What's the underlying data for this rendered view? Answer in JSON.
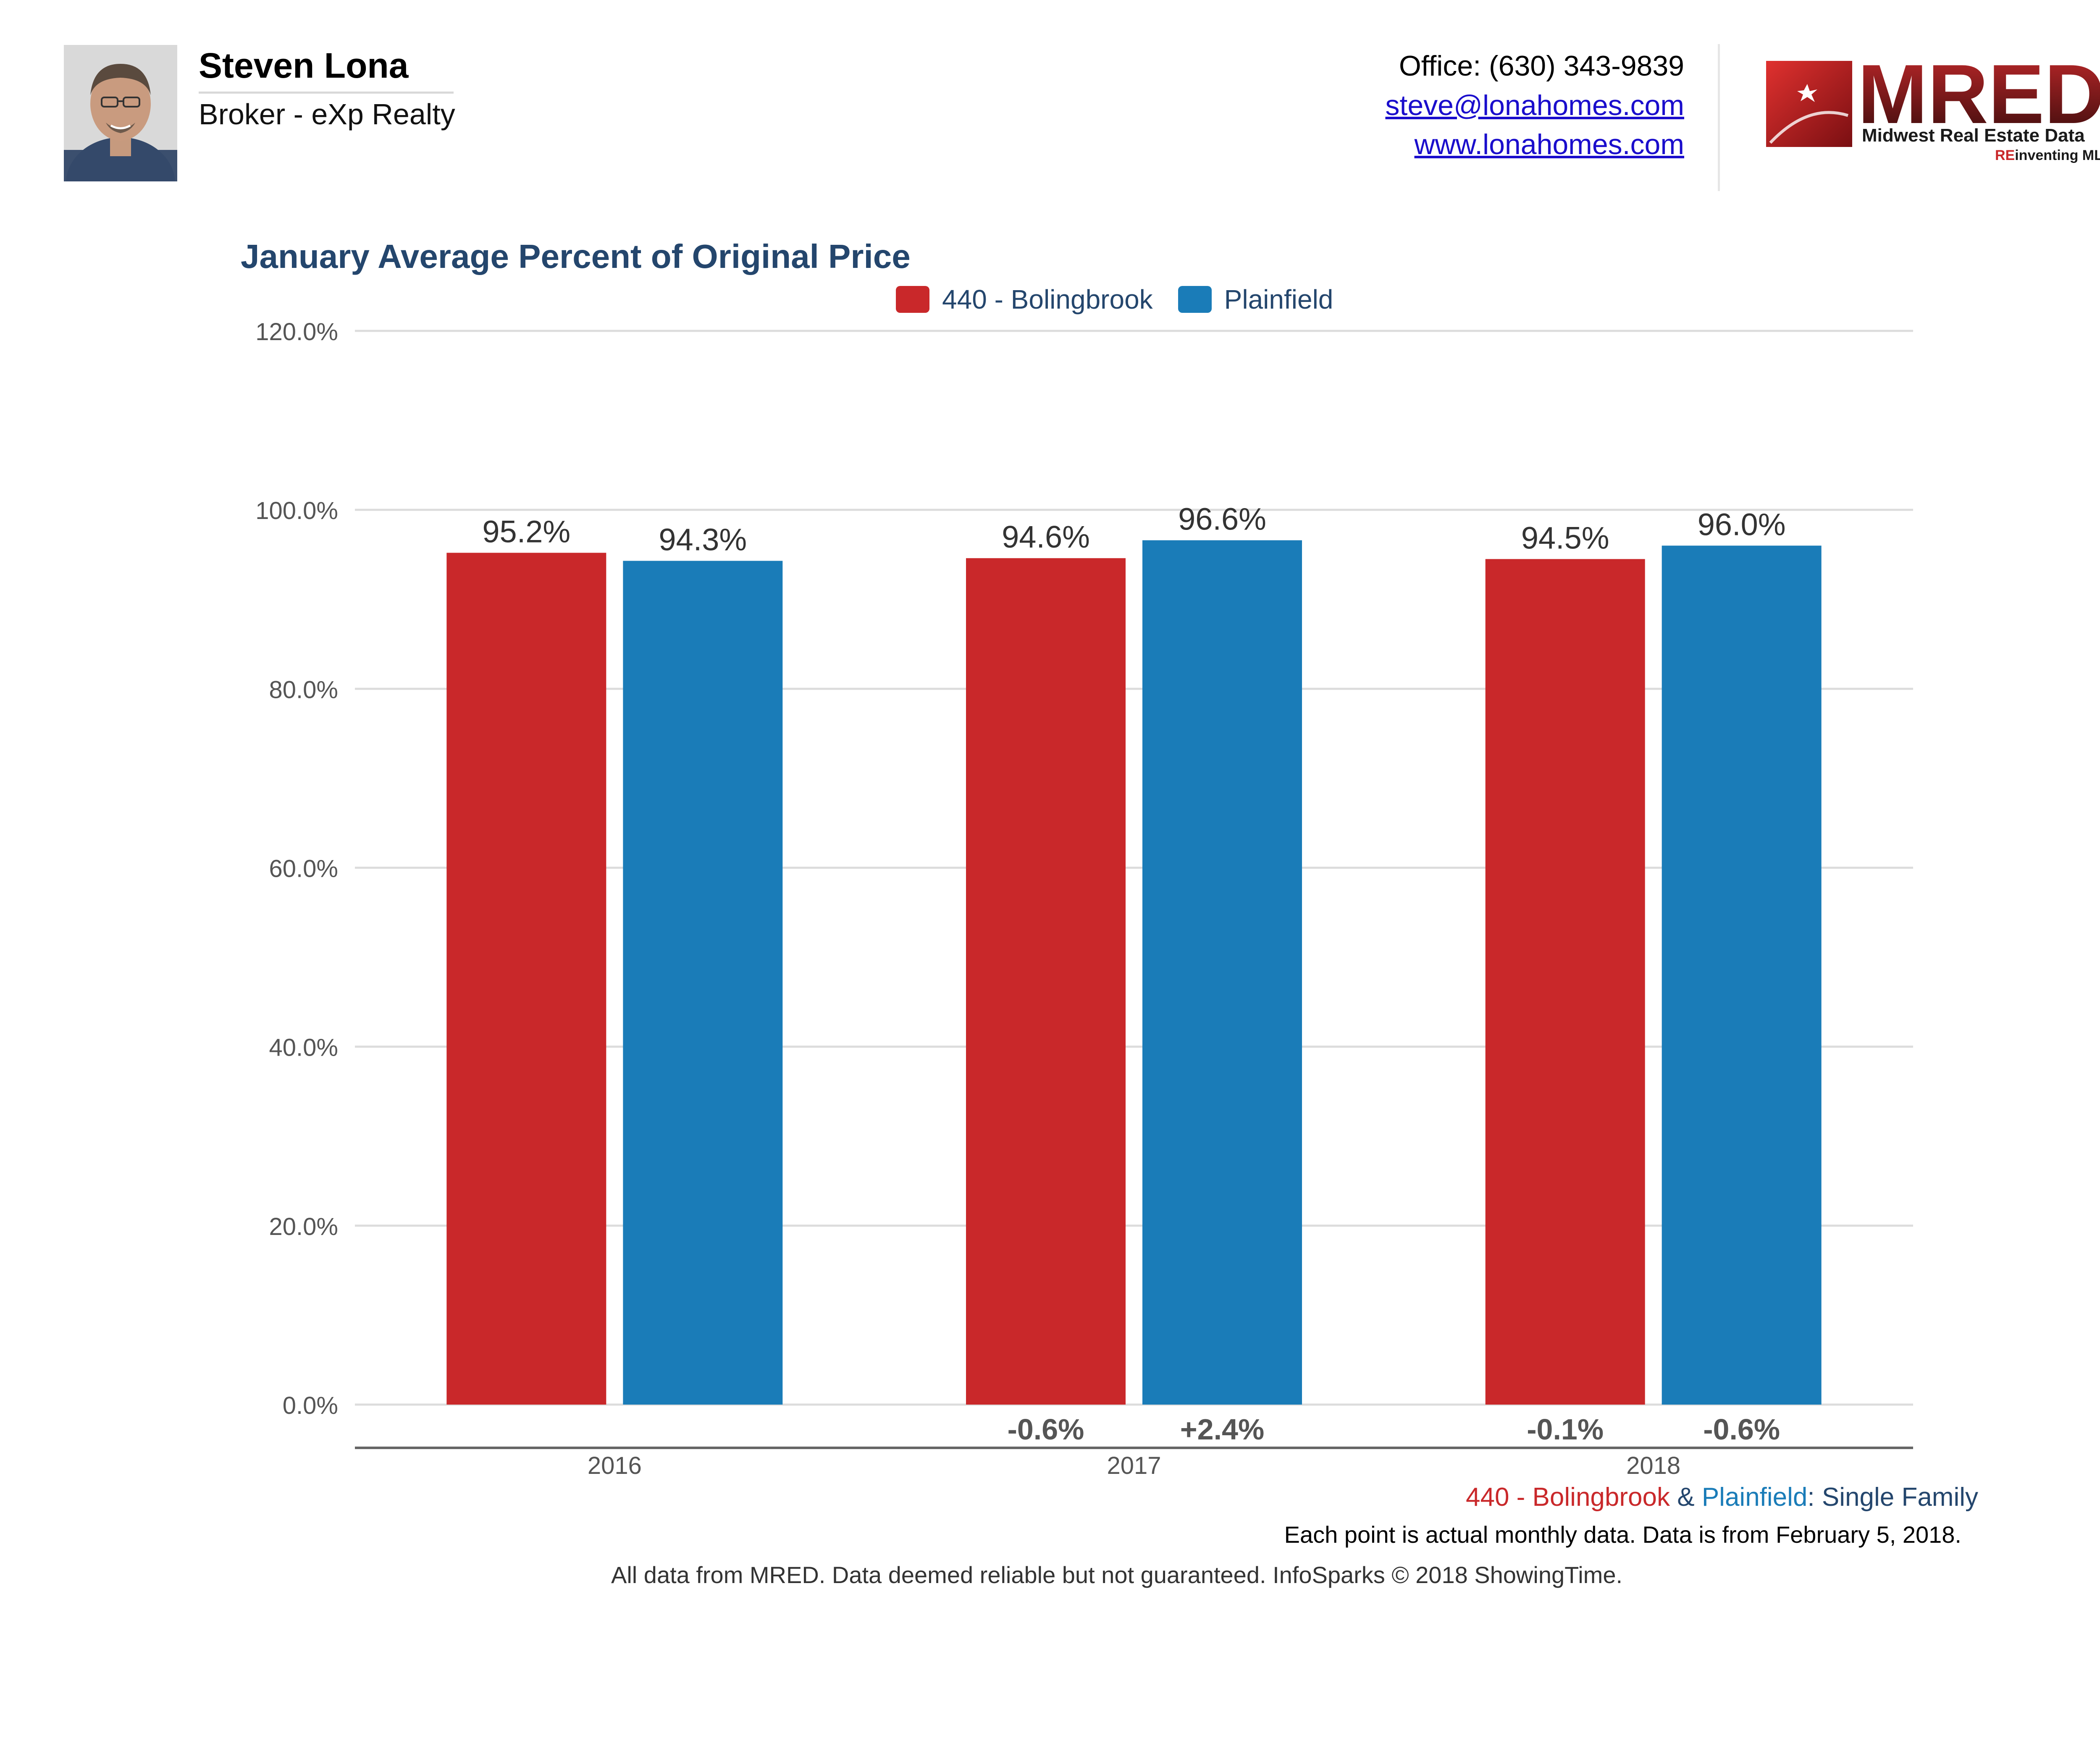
{
  "header": {
    "agent_name": "Steven Lona",
    "agent_title": "Broker - eXp Realty",
    "office": "Office: (630) 343-9839",
    "email": "steve@lonahomes.com",
    "website": "www.lonahomes.com"
  },
  "logo": {
    "name": "MRED",
    "registered": "®",
    "tagline": "Midwest Real Estate Data",
    "slogan_re": "RE",
    "slogan_rest": "inventing MLS"
  },
  "colors": {
    "bolingbrook": "#c9282a",
    "plainfield": "#1a7cb8",
    "title": "#24466d",
    "grid": "#dcdcdc"
  },
  "chart_data": {
    "type": "bar",
    "title": "January Average Percent of Original Price",
    "categories": [
      "2016",
      "2017",
      "2018"
    ],
    "series": [
      {
        "name": "440 - Bolingbrook",
        "values": [
          95.2,
          94.6,
          94.5
        ],
        "value_labels": [
          "95.2%",
          "94.6%",
          "94.5%"
        ],
        "change_labels": [
          "",
          "-0.6%",
          "-0.1%"
        ]
      },
      {
        "name": "Plainfield",
        "values": [
          94.3,
          96.6,
          96.0
        ],
        "value_labels": [
          "94.3%",
          "96.6%",
          "96.0%"
        ],
        "change_labels": [
          "",
          "+2.4%",
          "-0.6%"
        ]
      }
    ],
    "ylim": [
      0,
      120
    ],
    "yticks": [
      0,
      20,
      40,
      60,
      80,
      100,
      120
    ],
    "ytick_labels": [
      "0.0%",
      "20.0%",
      "40.0%",
      "60.0%",
      "80.0%",
      "100.0%",
      "120.0%"
    ],
    "grid": true,
    "legend_position": "top-center"
  },
  "footer": {
    "subtitle_a": "440 - Bolingbrook",
    "subtitle_amp": " & ",
    "subtitle_b": "Plainfield",
    "subtitle_rest": ": Single Family",
    "note": "Each point is actual monthly data. Data is from February 5, 2018.",
    "disclaimer": "All data from MRED. Data deemed reliable but not guaranteed. InfoSparks © 2018 ShowingTime."
  }
}
